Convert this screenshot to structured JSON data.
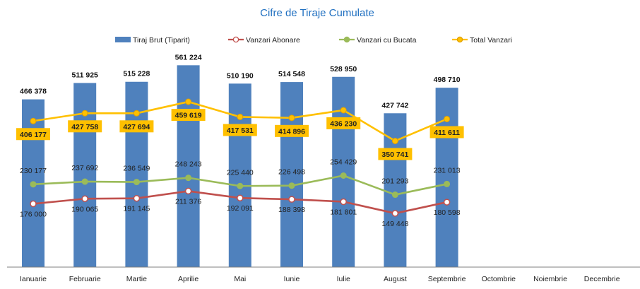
{
  "chart_data": {
    "type": "bar",
    "title": "Cifre de Tiraje Cumulate",
    "categories": [
      "Ianuarie",
      "Februarie",
      "Martie",
      "Aprilie",
      "Mai",
      "Iunie",
      "Iulie",
      "August",
      "Septembrie",
      "Octombrie",
      "Noiembrie",
      "Decembrie"
    ],
    "legend_position": "top",
    "grid": false,
    "ylim": [
      0,
      600000
    ],
    "series": [
      {
        "name": "Tiraj Brut (Tiparit)",
        "kind": "bar",
        "color": "#4f81bd",
        "values": [
          466378,
          511925,
          515228,
          561224,
          510190,
          514548,
          528950,
          427742,
          498710,
          null,
          null,
          null
        ],
        "labels": [
          "466 378",
          "511 925",
          "515 228",
          "561 224",
          "510 190",
          "514 548",
          "528 950",
          "427 742",
          "498 710",
          "",
          "",
          ""
        ]
      },
      {
        "name": "Vanzari Abonare",
        "kind": "line",
        "color": "#c0504d",
        "values": [
          176000,
          190065,
          191145,
          211376,
          192091,
          188398,
          181801,
          149448,
          180598,
          null,
          null,
          null
        ],
        "labels": [
          "176 000",
          "190 065",
          "191 145",
          "211 376",
          "192 091",
          "188 398",
          "181 801",
          "149 448",
          "180 598",
          "",
          "",
          ""
        ]
      },
      {
        "name": "Vanzari cu Bucata",
        "kind": "line",
        "color": "#9bbb59",
        "values": [
          230177,
          237692,
          236549,
          248243,
          225440,
          226498,
          254429,
          201293,
          231013,
          null,
          null,
          null
        ],
        "labels": [
          "230 177",
          "237 692",
          "236 549",
          "248 243",
          "225 440",
          "226 498",
          "254 429",
          "201 293",
          "231 013",
          "",
          "",
          ""
        ]
      },
      {
        "name": "Total Vanzari",
        "kind": "line",
        "color": "#ffc000",
        "values": [
          406177,
          427758,
          427694,
          459619,
          417531,
          414896,
          436230,
          350741,
          411611,
          null,
          null,
          null
        ],
        "labels": [
          "406 177",
          "427 758",
          "427 694",
          "459 619",
          "417 531",
          "414 896",
          "436 230",
          "350 741",
          "411 611",
          "",
          "",
          ""
        ]
      }
    ]
  }
}
